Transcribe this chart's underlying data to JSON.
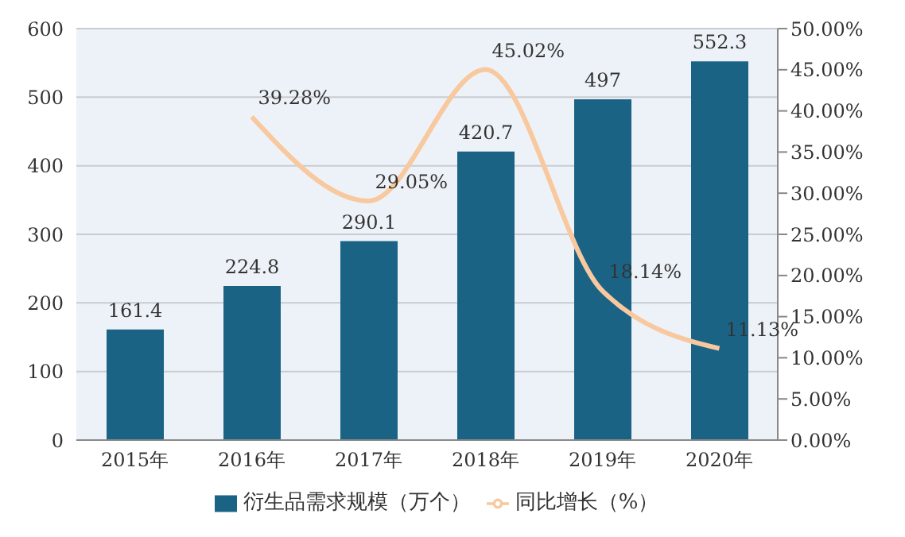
{
  "chart_data": {
    "type": "bar",
    "categories": [
      "2015年",
      "2016年",
      "2017年",
      "2018年",
      "2019年",
      "2020年"
    ],
    "series": [
      {
        "name": "衍生品需求规模（万个）",
        "color": "#1b6385",
        "values": [
          161.4,
          224.8,
          290.1,
          420.7,
          497,
          552.3
        ],
        "value_labels": [
          "161.4",
          "224.8",
          "290.1",
          "420.7",
          "497",
          "552.3"
        ]
      },
      {
        "name": "同比增长（%）",
        "type": "line",
        "axis": "y2",
        "color": "#f8c89e",
        "values": [
          null,
          39.28,
          29.05,
          45.02,
          18.14,
          11.13
        ],
        "value_labels": [
          null,
          "39.28%",
          "29.05%",
          "45.02%",
          "18.14%",
          "11.13%"
        ]
      }
    ],
    "ylim": [
      0,
      600
    ],
    "yticks": [
      0,
      100,
      200,
      300,
      400,
      500,
      600
    ],
    "y2lim": [
      0,
      50
    ],
    "y2ticks": [
      {
        "value": 0,
        "label": "0.00%"
      },
      {
        "value": 5,
        "label": "5.00%"
      },
      {
        "value": 10,
        "label": "10.00%"
      },
      {
        "value": 15,
        "label": "15.00%"
      },
      {
        "value": 20,
        "label": "20.00%"
      },
      {
        "value": 25,
        "label": "25.00%"
      },
      {
        "value": 30,
        "label": "30.00%"
      },
      {
        "value": 35,
        "label": "35.00%"
      },
      {
        "value": 40,
        "label": "40.00%"
      },
      {
        "value": 45,
        "label": "45.00%"
      },
      {
        "value": 50,
        "label": "50.00%"
      }
    ],
    "grid": "y",
    "legend": "bottom",
    "marker": "none",
    "line_style": "solid"
  }
}
